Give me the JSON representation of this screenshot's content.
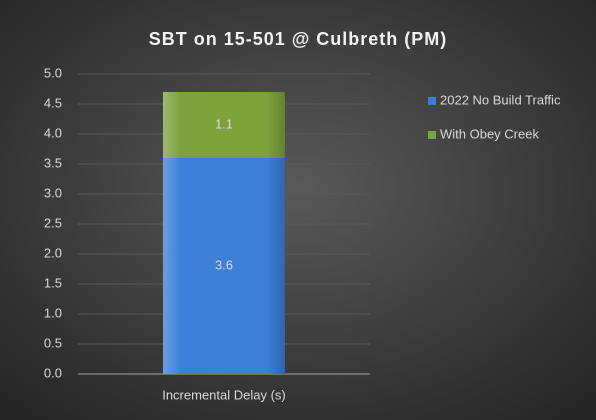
{
  "chart_data": {
    "type": "stacked_bar",
    "title": "SBT on 15-501 @ Culbreth (PM)",
    "categories": [
      "Incremental Delay (s)"
    ],
    "series": [
      {
        "name": "2022 No Build Traffic",
        "color": "#3b7fd9",
        "values": [
          3.6
        ]
      },
      {
        "name": "With Obey Creek",
        "color": "#7da23c",
        "values": [
          1.1
        ]
      }
    ],
    "ylim": [
      0,
      5
    ],
    "yticks": [
      {
        "value": 0,
        "label": "0.0"
      },
      0.5,
      {
        "value": 1,
        "label": "1.0"
      },
      1.5,
      {
        "value": 2,
        "label": "2.0"
      },
      2.5,
      {
        "value": 3,
        "label": "3.0"
      },
      3.5,
      {
        "value": 4,
        "label": "4.0"
      },
      4.5,
      {
        "value": 5,
        "label": "5.0"
      }
    ],
    "grid": true,
    "legend": "right"
  }
}
